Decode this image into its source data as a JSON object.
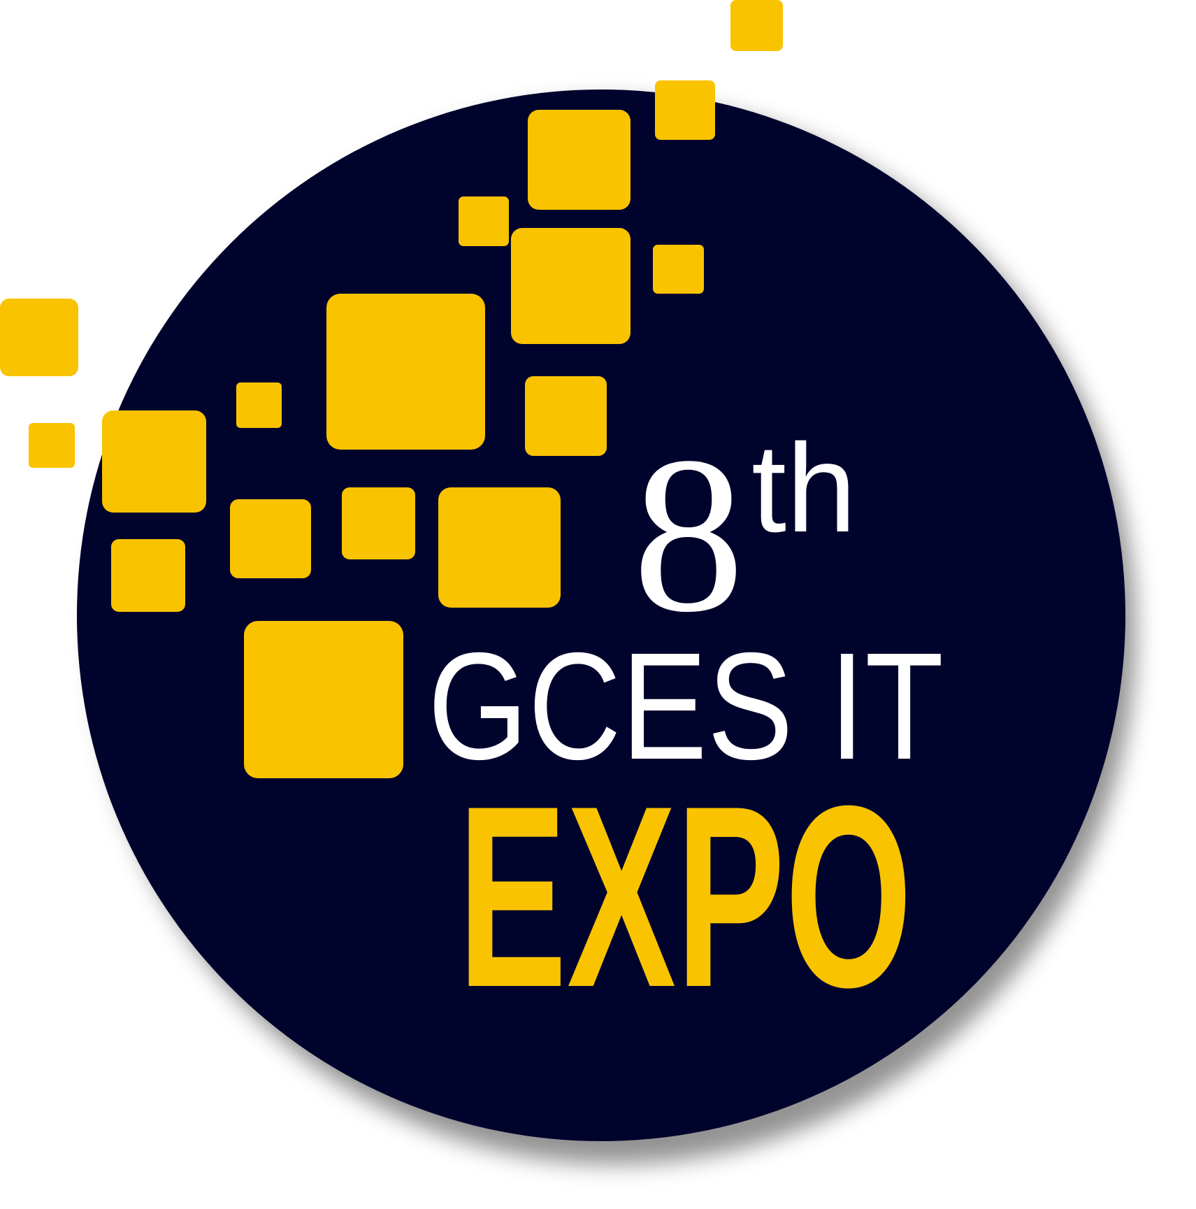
{
  "logo": {
    "ordinal_number": "8",
    "ordinal_suffix": "th",
    "name_line": "GCES IT",
    "event_word": "EXPO"
  },
  "colors": {
    "background": "#ffffff",
    "circle": "#00032c",
    "accent": "#f9c300",
    "text_light": "#ffffff",
    "shadow": "#6e6e6e"
  },
  "icons": {
    "squares": "pixel-squares-icon"
  }
}
